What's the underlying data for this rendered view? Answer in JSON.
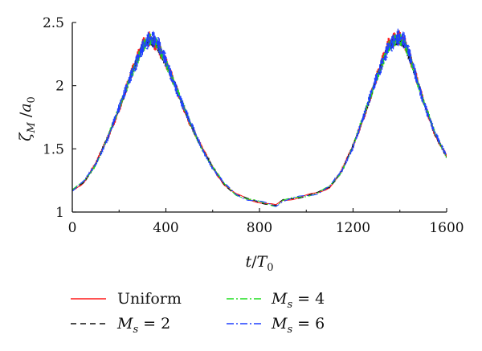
{
  "chart_data": {
    "type": "line",
    "xlabel_main": "t",
    "xlabel_sep": "/",
    "xlabel_sym": "T",
    "xlabel_sub": "0",
    "ylabel_main": "ζ",
    "ylabel_sub": "M",
    "ylabel_sep": " /",
    "ylabel_sym": "a",
    "ylabel_sub2": "0",
    "xlim": [
      0,
      1600
    ],
    "ylim": [
      1,
      2.5
    ],
    "xticks": [
      0,
      400,
      800,
      1200,
      1600
    ],
    "xtick_labels": [
      "0",
      "400",
      "800",
      "1200",
      "1600"
    ],
    "yticks": [
      1,
      1.5,
      2,
      2.5
    ],
    "ytick_labels": [
      "1",
      "1.5",
      "2",
      "2.5"
    ],
    "grid": false,
    "legend_position": "bottom",
    "x": [
      0,
      50,
      100,
      150,
      200,
      250,
      300,
      330,
      360,
      400,
      450,
      500,
      550,
      600,
      650,
      700,
      750,
      800,
      850,
      870,
      900,
      950,
      1000,
      1050,
      1100,
      1150,
      1200,
      1250,
      1300,
      1350,
      1390,
      1420,
      1450,
      1500,
      1550,
      1600
    ],
    "series": [
      {
        "name": "Uniform",
        "legend_label": "Uniform",
        "color": "#ff1a1a",
        "dash": "solid",
        "values": [
          1.17,
          1.24,
          1.38,
          1.58,
          1.82,
          2.08,
          2.32,
          2.38,
          2.33,
          2.18,
          1.95,
          1.72,
          1.52,
          1.35,
          1.22,
          1.14,
          1.1,
          1.08,
          1.06,
          1.05,
          1.09,
          1.11,
          1.13,
          1.15,
          1.2,
          1.32,
          1.52,
          1.78,
          2.06,
          2.32,
          2.4,
          2.35,
          2.18,
          1.88,
          1.62,
          1.44
        ],
        "amplitude": 0.06
      },
      {
        "name": "Ms = 2",
        "legend_sym": "M",
        "legend_sub": "s",
        "legend_rest": " = 2",
        "color": "#111111",
        "dash": "7,5",
        "values": [
          1.17,
          1.24,
          1.38,
          1.58,
          1.82,
          2.08,
          2.3,
          2.36,
          2.33,
          2.18,
          1.95,
          1.72,
          1.52,
          1.35,
          1.22,
          1.14,
          1.1,
          1.08,
          1.06,
          1.05,
          1.09,
          1.11,
          1.13,
          1.15,
          1.2,
          1.32,
          1.52,
          1.78,
          2.06,
          2.3,
          2.36,
          2.33,
          2.18,
          1.88,
          1.62,
          1.44
        ],
        "amplitude": 0.04
      },
      {
        "name": "Ms = 4",
        "legend_sym": "M",
        "legend_sub": "s",
        "legend_rest": " = 4",
        "color": "#1fdd1f",
        "dash": "9,3,2,3",
        "values": [
          1.17,
          1.24,
          1.38,
          1.58,
          1.82,
          2.08,
          2.3,
          2.36,
          2.34,
          2.19,
          1.95,
          1.72,
          1.52,
          1.35,
          1.22,
          1.14,
          1.1,
          1.08,
          1.06,
          1.05,
          1.09,
          1.11,
          1.13,
          1.15,
          1.2,
          1.32,
          1.52,
          1.78,
          2.06,
          2.3,
          2.37,
          2.34,
          2.19,
          1.88,
          1.62,
          1.44
        ],
        "amplitude": 0.05
      },
      {
        "name": "Ms = 6",
        "legend_sym": "M",
        "legend_sub": "s",
        "legend_rest": " = 6",
        "color": "#1f3fff",
        "dash": "9,3,2,3",
        "values": [
          1.17,
          1.24,
          1.38,
          1.58,
          1.82,
          2.08,
          2.31,
          2.37,
          2.35,
          2.2,
          1.95,
          1.72,
          1.52,
          1.35,
          1.22,
          1.14,
          1.1,
          1.08,
          1.06,
          1.05,
          1.09,
          1.11,
          1.13,
          1.15,
          1.2,
          1.32,
          1.52,
          1.78,
          2.06,
          2.31,
          2.38,
          2.35,
          2.2,
          1.88,
          1.62,
          1.44
        ],
        "amplitude": 0.07
      }
    ]
  }
}
